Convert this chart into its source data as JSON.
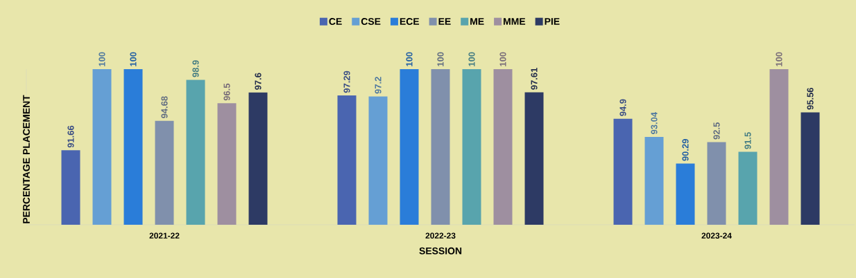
{
  "chart_data": {
    "type": "bar",
    "xlabel": "SESSION",
    "ylabel": "PERCENTAGE PLACEMENT",
    "categories": [
      "2021-22",
      "2022-23",
      "2023-24"
    ],
    "series": [
      {
        "name": "CE",
        "color": "#4a65b0",
        "values": [
          91.66,
          97.29,
          94.9
        ]
      },
      {
        "name": "CSE",
        "color": "#659fd4",
        "values": [
          100,
          97.2,
          93.04
        ]
      },
      {
        "name": "ECE",
        "color": "#2a7dd9",
        "values": [
          100,
          100,
          90.29
        ]
      },
      {
        "name": "EE",
        "color": "#8090ac",
        "values": [
          94.68,
          100,
          92.5
        ]
      },
      {
        "name": "ME",
        "color": "#58a4ad",
        "values": [
          98.9,
          100,
          91.5
        ]
      },
      {
        "name": "MME",
        "color": "#9e8fa0",
        "values": [
          96.5,
          100,
          100
        ]
      },
      {
        "name": "PIE",
        "color": "#2d3a64",
        "values": [
          97.6,
          97.61,
          95.56
        ]
      }
    ],
    "ylim": [
      84,
      100
    ],
    "data_labels": true,
    "legend": "top",
    "tick_labels": "x"
  }
}
